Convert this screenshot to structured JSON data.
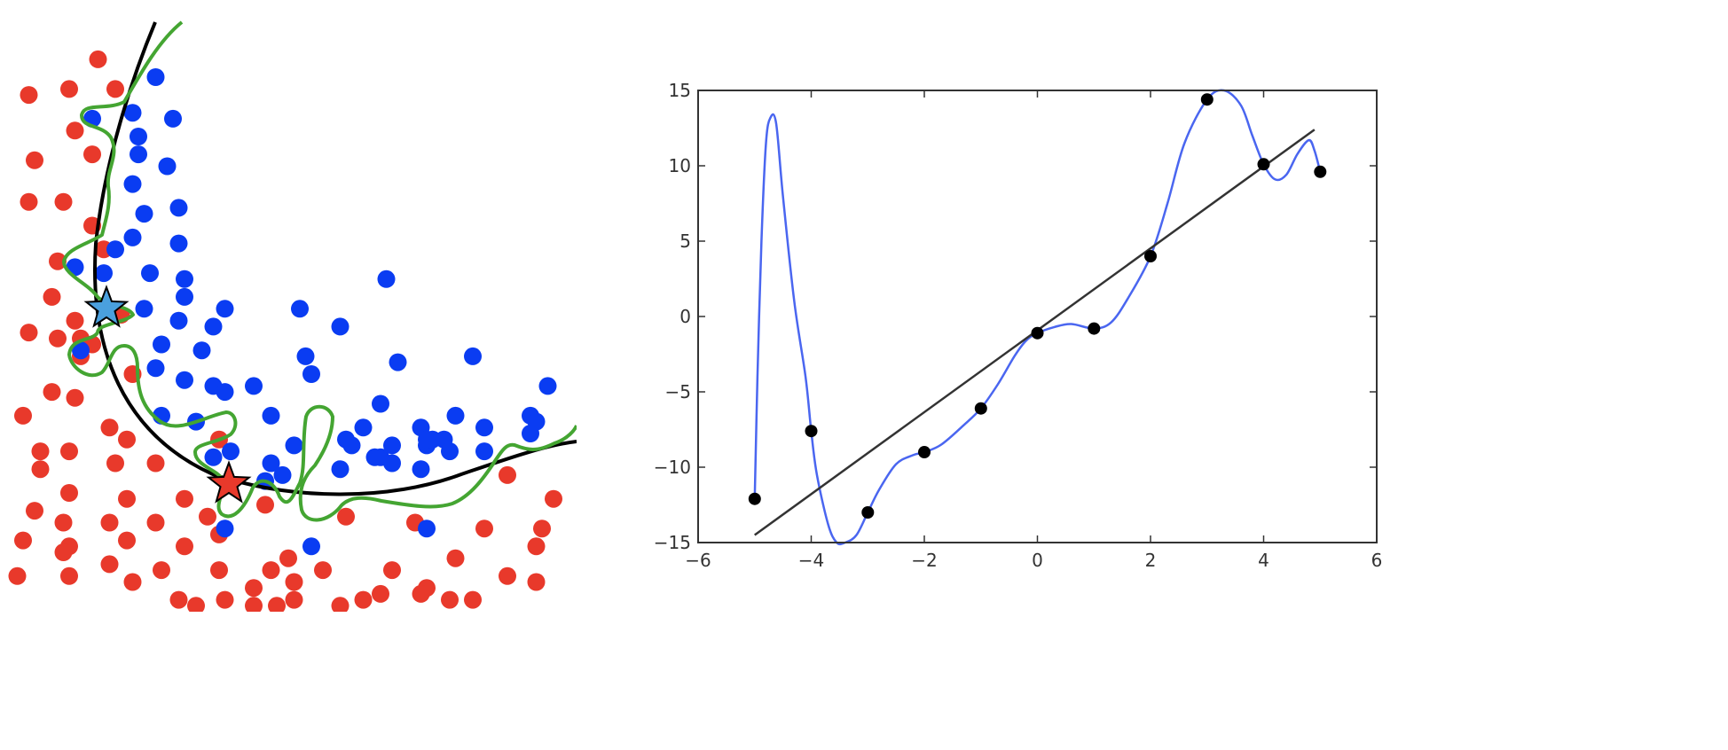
{
  "colors": {
    "red_point": "#e8392b",
    "blue_point": "#0a3cf2",
    "black_boundary": "#000000",
    "green_boundary": "#44a532",
    "blue_star": "#4aa0de",
    "red_star": "#e8392b",
    "fit_curve": "#4a66f0",
    "linear_fit": "#333333",
    "data_point": "#000000",
    "axis_frame": "#333333"
  },
  "chart_data": [
    {
      "type": "scatter",
      "grid": false,
      "axes_visible": false,
      "markers": [
        "blue star",
        "red star"
      ],
      "series": [
        {
          "color": "red",
          "points": [
            [
              0.17,
              0.07
            ],
            [
              0.05,
              0.13
            ],
            [
              0.12,
              0.12
            ],
            [
              0.2,
              0.12
            ],
            [
              0.06,
              0.24
            ],
            [
              0.13,
              0.19
            ],
            [
              0.16,
              0.23
            ],
            [
              0.05,
              0.31
            ],
            [
              0.11,
              0.31
            ],
            [
              0.16,
              0.35
            ],
            [
              0.18,
              0.39
            ],
            [
              0.1,
              0.41
            ],
            [
              0.09,
              0.47
            ],
            [
              0.13,
              0.51
            ],
            [
              0.05,
              0.53
            ],
            [
              0.1,
              0.54
            ],
            [
              0.14,
              0.54
            ],
            [
              0.16,
              0.55
            ],
            [
              0.21,
              0.5
            ],
            [
              0.14,
              0.57
            ],
            [
              0.23,
              0.6
            ],
            [
              0.09,
              0.63
            ],
            [
              0.13,
              0.64
            ],
            [
              0.04,
              0.67
            ],
            [
              0.19,
              0.69
            ],
            [
              0.07,
              0.73
            ],
            [
              0.12,
              0.73
            ],
            [
              0.07,
              0.76
            ],
            [
              0.2,
              0.75
            ],
            [
              0.22,
              0.71
            ],
            [
              0.27,
              0.75
            ],
            [
              0.38,
              0.71
            ],
            [
              0.12,
              0.8
            ],
            [
              0.22,
              0.81
            ],
            [
              0.32,
              0.81
            ],
            [
              0.06,
              0.83
            ],
            [
              0.11,
              0.85
            ],
            [
              0.19,
              0.85
            ],
            [
              0.27,
              0.85
            ],
            [
              0.36,
              0.84
            ],
            [
              0.04,
              0.88
            ],
            [
              0.12,
              0.89
            ],
            [
              0.22,
              0.88
            ],
            [
              0.32,
              0.89
            ],
            [
              0.38,
              0.87
            ],
            [
              0.46,
              0.82
            ],
            [
              0.03,
              0.94
            ],
            [
              0.11,
              0.9
            ],
            [
              0.19,
              0.92
            ],
            [
              0.28,
              0.93
            ],
            [
              0.38,
              0.93
            ],
            [
              0.5,
              0.91
            ],
            [
              0.56,
              0.93
            ],
            [
              0.44,
              0.96
            ],
            [
              0.51,
              0.95
            ],
            [
              0.6,
              0.84
            ],
            [
              0.68,
              0.93
            ],
            [
              0.74,
              0.96
            ],
            [
              0.79,
              0.91
            ],
            [
              0.84,
              0.86
            ],
            [
              0.94,
              0.86
            ],
            [
              0.96,
              0.81
            ],
            [
              0.88,
              0.77
            ],
            [
              0.93,
              0.89
            ],
            [
              0.88,
              0.94
            ],
            [
              0.93,
              0.95
            ],
            [
              0.78,
              0.98
            ],
            [
              0.82,
              0.98
            ],
            [
              0.73,
              0.97
            ],
            [
              0.63,
              0.98
            ],
            [
              0.59,
              0.99
            ],
            [
              0.51,
              0.98
            ],
            [
              0.44,
              0.99
            ],
            [
              0.31,
              0.98
            ],
            [
              0.34,
              0.99
            ],
            [
              0.12,
              0.94
            ],
            [
              0.23,
              0.95
            ],
            [
              0.39,
              0.98
            ],
            [
              0.48,
              0.99
            ],
            [
              0.47,
              0.93
            ],
            [
              0.66,
              0.97
            ],
            [
              0.72,
              0.85
            ]
          ]
        },
        {
          "color": "blue",
          "points": [
            [
              0.27,
              0.1
            ],
            [
              0.16,
              0.17
            ],
            [
              0.23,
              0.16
            ],
            [
              0.3,
              0.17
            ],
            [
              0.24,
              0.2
            ],
            [
              0.24,
              0.23
            ],
            [
              0.29,
              0.25
            ],
            [
              0.23,
              0.28
            ],
            [
              0.25,
              0.33
            ],
            [
              0.31,
              0.32
            ],
            [
              0.23,
              0.37
            ],
            [
              0.31,
              0.38
            ],
            [
              0.2,
              0.39
            ],
            [
              0.13,
              0.42
            ],
            [
              0.18,
              0.43
            ],
            [
              0.26,
              0.43
            ],
            [
              0.32,
              0.44
            ],
            [
              0.32,
              0.47
            ],
            [
              0.25,
              0.49
            ],
            [
              0.31,
              0.51
            ],
            [
              0.39,
              0.49
            ],
            [
              0.37,
              0.52
            ],
            [
              0.14,
              0.56
            ],
            [
              0.28,
              0.55
            ],
            [
              0.35,
              0.56
            ],
            [
              0.27,
              0.59
            ],
            [
              0.32,
              0.61
            ],
            [
              0.37,
              0.62
            ],
            [
              0.39,
              0.63
            ],
            [
              0.44,
              0.62
            ],
            [
              0.52,
              0.49
            ],
            [
              0.59,
              0.52
            ],
            [
              0.67,
              0.44
            ],
            [
              0.53,
              0.57
            ],
            [
              0.54,
              0.6
            ],
            [
              0.69,
              0.58
            ],
            [
              0.82,
              0.57
            ],
            [
              0.95,
              0.62
            ],
            [
              0.47,
              0.67
            ],
            [
              0.28,
              0.67
            ],
            [
              0.34,
              0.68
            ],
            [
              0.4,
              0.73
            ],
            [
              0.47,
              0.75
            ],
            [
              0.51,
              0.72
            ],
            [
              0.49,
              0.77
            ],
            [
              0.46,
              0.78
            ],
            [
              0.6,
              0.71
            ],
            [
              0.63,
              0.69
            ],
            [
              0.61,
              0.72
            ],
            [
              0.66,
              0.65
            ],
            [
              0.65,
              0.74
            ],
            [
              0.68,
              0.72
            ],
            [
              0.68,
              0.75
            ],
            [
              0.73,
              0.69
            ],
            [
              0.74,
              0.72
            ],
            [
              0.74,
              0.71
            ],
            [
              0.75,
              0.71
            ],
            [
              0.77,
              0.71
            ],
            [
              0.78,
              0.73
            ],
            [
              0.79,
              0.67
            ],
            [
              0.84,
              0.69
            ],
            [
              0.84,
              0.73
            ],
            [
              0.59,
              0.76
            ],
            [
              0.66,
              0.74
            ],
            [
              0.73,
              0.76
            ],
            [
              0.92,
              0.67
            ],
            [
              0.93,
              0.68
            ],
            [
              0.92,
              0.7
            ],
            [
              0.37,
              0.74
            ],
            [
              0.74,
              0.86
            ],
            [
              0.54,
              0.89
            ],
            [
              0.39,
              0.86
            ]
          ]
        }
      ]
    },
    {
      "type": "line",
      "grid": false,
      "xlim": [
        -6,
        6
      ],
      "ylim": [
        -15,
        15
      ],
      "xticks": [
        "−6",
        "−4",
        "−2",
        "0",
        "2",
        "4",
        "6"
      ],
      "yticks": [
        "15",
        "10",
        "5",
        "0",
        "−5",
        "−10",
        "−15"
      ],
      "xtick_values": [
        -6,
        -4,
        -2,
        0,
        2,
        4,
        6
      ],
      "ytick_values": [
        15,
        10,
        5,
        0,
        -5,
        -10,
        -15
      ],
      "points": [
        [
          -5,
          -12.1
        ],
        [
          -4,
          -7.6
        ],
        [
          -3,
          -13
        ],
        [
          -2,
          -9
        ],
        [
          -1,
          -6.1
        ],
        [
          0,
          -1.1
        ],
        [
          1,
          -0.8
        ],
        [
          2,
          4
        ],
        [
          3,
          14.4
        ],
        [
          4,
          10.1
        ],
        [
          5,
          9.6
        ]
      ],
      "linear_fit": [
        [
          -5,
          -14.5
        ],
        [
          4.9,
          12.4
        ]
      ],
      "overfit_curve": [
        [
          -5,
          -12.1
        ],
        [
          -4.95,
          -4
        ],
        [
          -4.88,
          5
        ],
        [
          -4.8,
          11.5
        ],
        [
          -4.72,
          13.2
        ],
        [
          -4.62,
          12.8
        ],
        [
          -4.5,
          8
        ],
        [
          -4.3,
          1
        ],
        [
          -4.1,
          -4
        ],
        [
          -4,
          -7.6
        ],
        [
          -3.9,
          -10.5
        ],
        [
          -3.7,
          -13.8
        ],
        [
          -3.55,
          -15
        ],
        [
          -3.4,
          -15
        ],
        [
          -3.2,
          -14.5
        ],
        [
          -3,
          -13
        ],
        [
          -2.8,
          -11.5
        ],
        [
          -2.5,
          -9.8
        ],
        [
          -2.2,
          -9.2
        ],
        [
          -2,
          -9
        ],
        [
          -1.7,
          -8.5
        ],
        [
          -1.3,
          -7.2
        ],
        [
          -1,
          -6.1
        ],
        [
          -0.7,
          -4.5
        ],
        [
          -0.4,
          -2.6
        ],
        [
          -0.2,
          -1.6
        ],
        [
          0,
          -1.1
        ],
        [
          0.3,
          -0.7
        ],
        [
          0.6,
          -0.5
        ],
        [
          1,
          -0.8
        ],
        [
          1.3,
          -0.4
        ],
        [
          1.6,
          1.2
        ],
        [
          2,
          4
        ],
        [
          2.3,
          7.5
        ],
        [
          2.6,
          11.5
        ],
        [
          3,
          14.4
        ],
        [
          3.3,
          15
        ],
        [
          3.6,
          14
        ],
        [
          3.8,
          12
        ],
        [
          4,
          10.1
        ],
        [
          4.2,
          9.1
        ],
        [
          4.4,
          9.4
        ],
        [
          4.6,
          10.8
        ],
        [
          4.8,
          11.7
        ],
        [
          4.9,
          11
        ],
        [
          5,
          9.6
        ]
      ]
    }
  ]
}
